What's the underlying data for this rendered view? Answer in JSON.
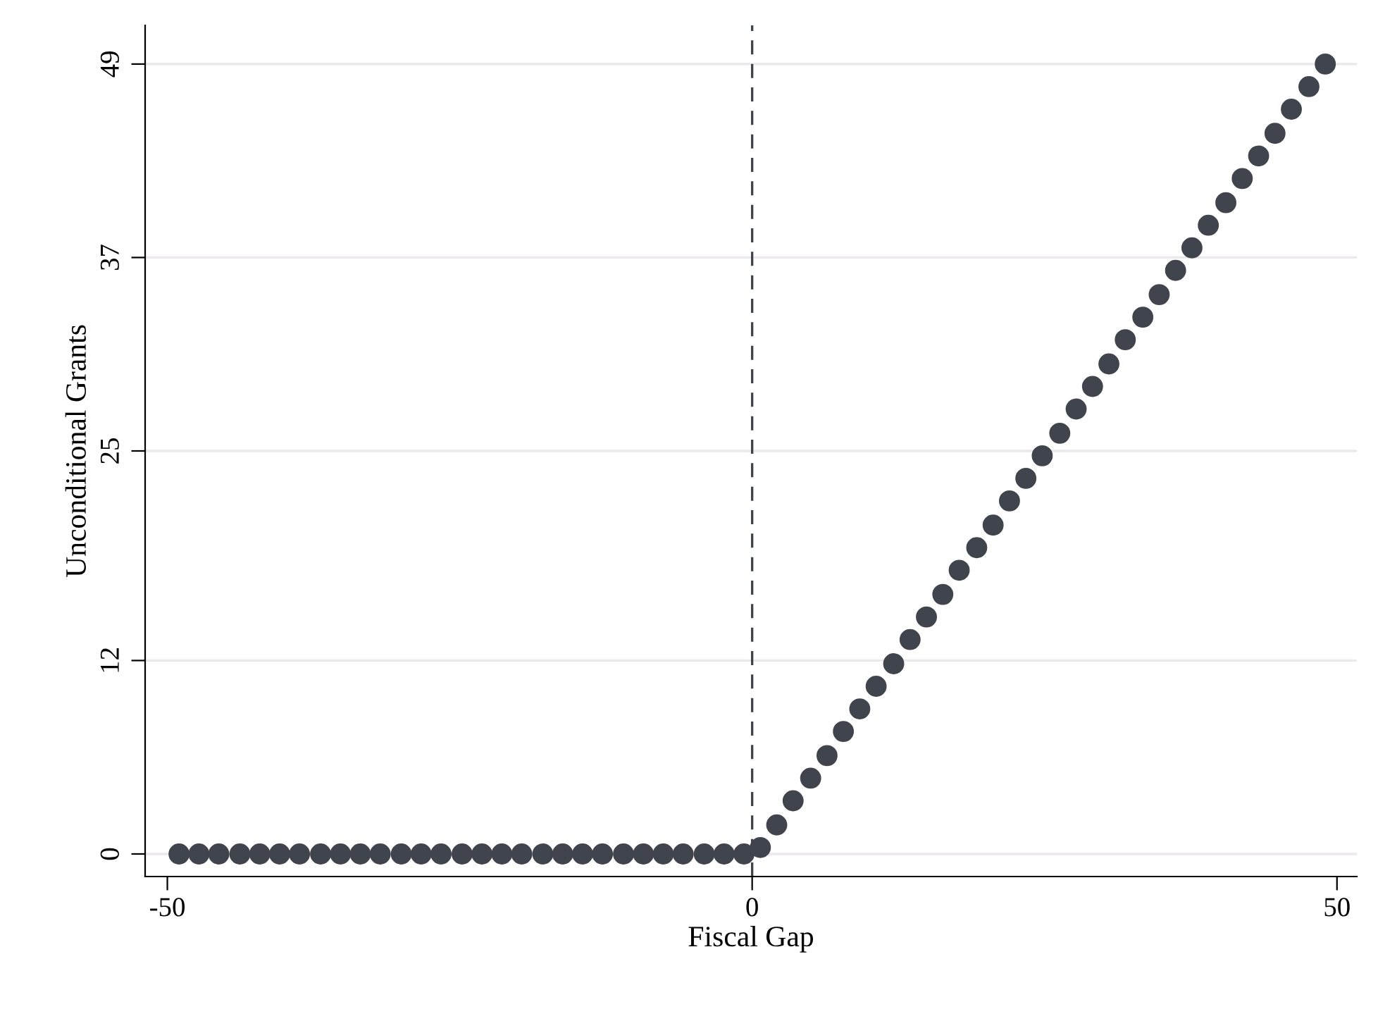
{
  "chart_data": {
    "type": "scatter",
    "xlabel": "Fiscal Gap",
    "ylabel": "Unconditional Grants",
    "x": [
      -49,
      -47.3,
      -45.6,
      -43.8,
      -42.1,
      -40.4,
      -38.7,
      -36.9,
      -35.2,
      -33.5,
      -31.8,
      -30.0,
      -28.3,
      -26.6,
      -24.8,
      -23.1,
      -21.4,
      -19.7,
      -17.9,
      -16.2,
      -14.5,
      -12.8,
      -11.0,
      -9.3,
      -7.6,
      -5.9,
      -4.1,
      -2.4,
      -0.7,
      0.7,
      2.1,
      3.5,
      5.0,
      6.4,
      7.8,
      9.2,
      10.6,
      12.1,
      13.5,
      14.9,
      16.3,
      17.7,
      19.2,
      20.6,
      22.0,
      23.4,
      24.8,
      26.3,
      27.7,
      29.1,
      30.5,
      31.9,
      33.4,
      34.8,
      36.2,
      37.6,
      39.0,
      40.5,
      41.9,
      43.3,
      44.7,
      46.1,
      47.6,
      49.0
    ],
    "series": [
      {
        "color": "#40444c",
        "values": [
          0,
          0,
          0,
          0,
          0,
          0,
          0,
          0,
          0,
          0,
          0,
          0,
          0,
          0,
          0,
          0,
          0,
          0,
          0,
          0,
          0,
          0,
          0,
          0,
          0,
          0,
          0,
          0,
          0,
          0.4,
          1.8,
          3.3,
          4.7,
          6.1,
          7.6,
          9.0,
          10.4,
          11.8,
          13.3,
          14.7,
          16.1,
          17.6,
          19.0,
          20.4,
          21.9,
          23.3,
          24.7,
          26.1,
          27.6,
          29.0,
          30.4,
          31.9,
          33.3,
          34.7,
          36.2,
          37.6,
          39.0,
          40.4,
          41.9,
          43.3,
          44.7,
          46.2,
          47.6,
          49.0
        ]
      }
    ],
    "xlim": [
      -51.9,
      51.7
    ],
    "ylim": [
      -1.4,
      51.4
    ],
    "xticks": [
      -50,
      0,
      50
    ],
    "yticks": [
      0,
      12,
      25,
      37,
      49
    ],
    "grid": "y",
    "marker": "circle",
    "ref_lines": [
      {
        "axis": "x",
        "value": 0,
        "color": "#40444c",
        "line_style": "dashed"
      }
    ]
  }
}
